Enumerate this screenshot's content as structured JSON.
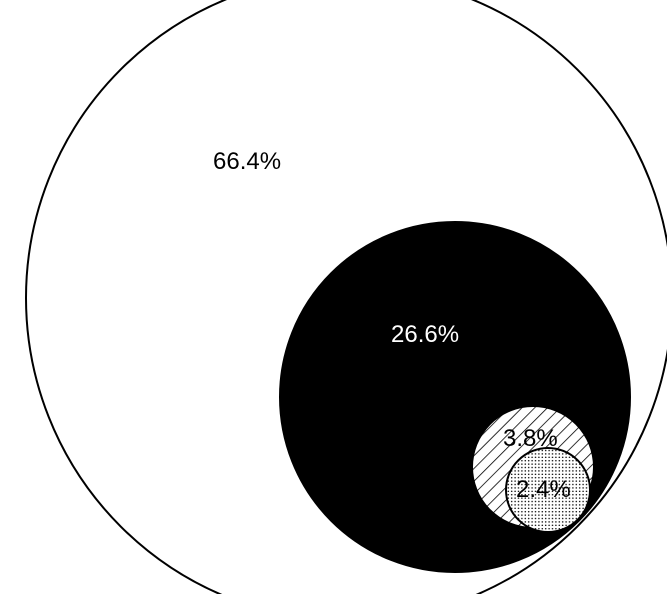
{
  "chart_data": {
    "type": "nested-circles",
    "title": "",
    "series": [
      {
        "label": "66.4%",
        "value": 66.4,
        "fill": "none"
      },
      {
        "label": "26.6%",
        "value": 26.6,
        "fill": "solid"
      },
      {
        "label": "3.8%",
        "value": 3.8,
        "fill": "hatched"
      },
      {
        "label": "2.4%",
        "value": 2.4,
        "fill": "dotted"
      }
    ],
    "colors": {
      "stroke": "#000000",
      "solid": "#000000",
      "background": "#ffffff"
    }
  }
}
